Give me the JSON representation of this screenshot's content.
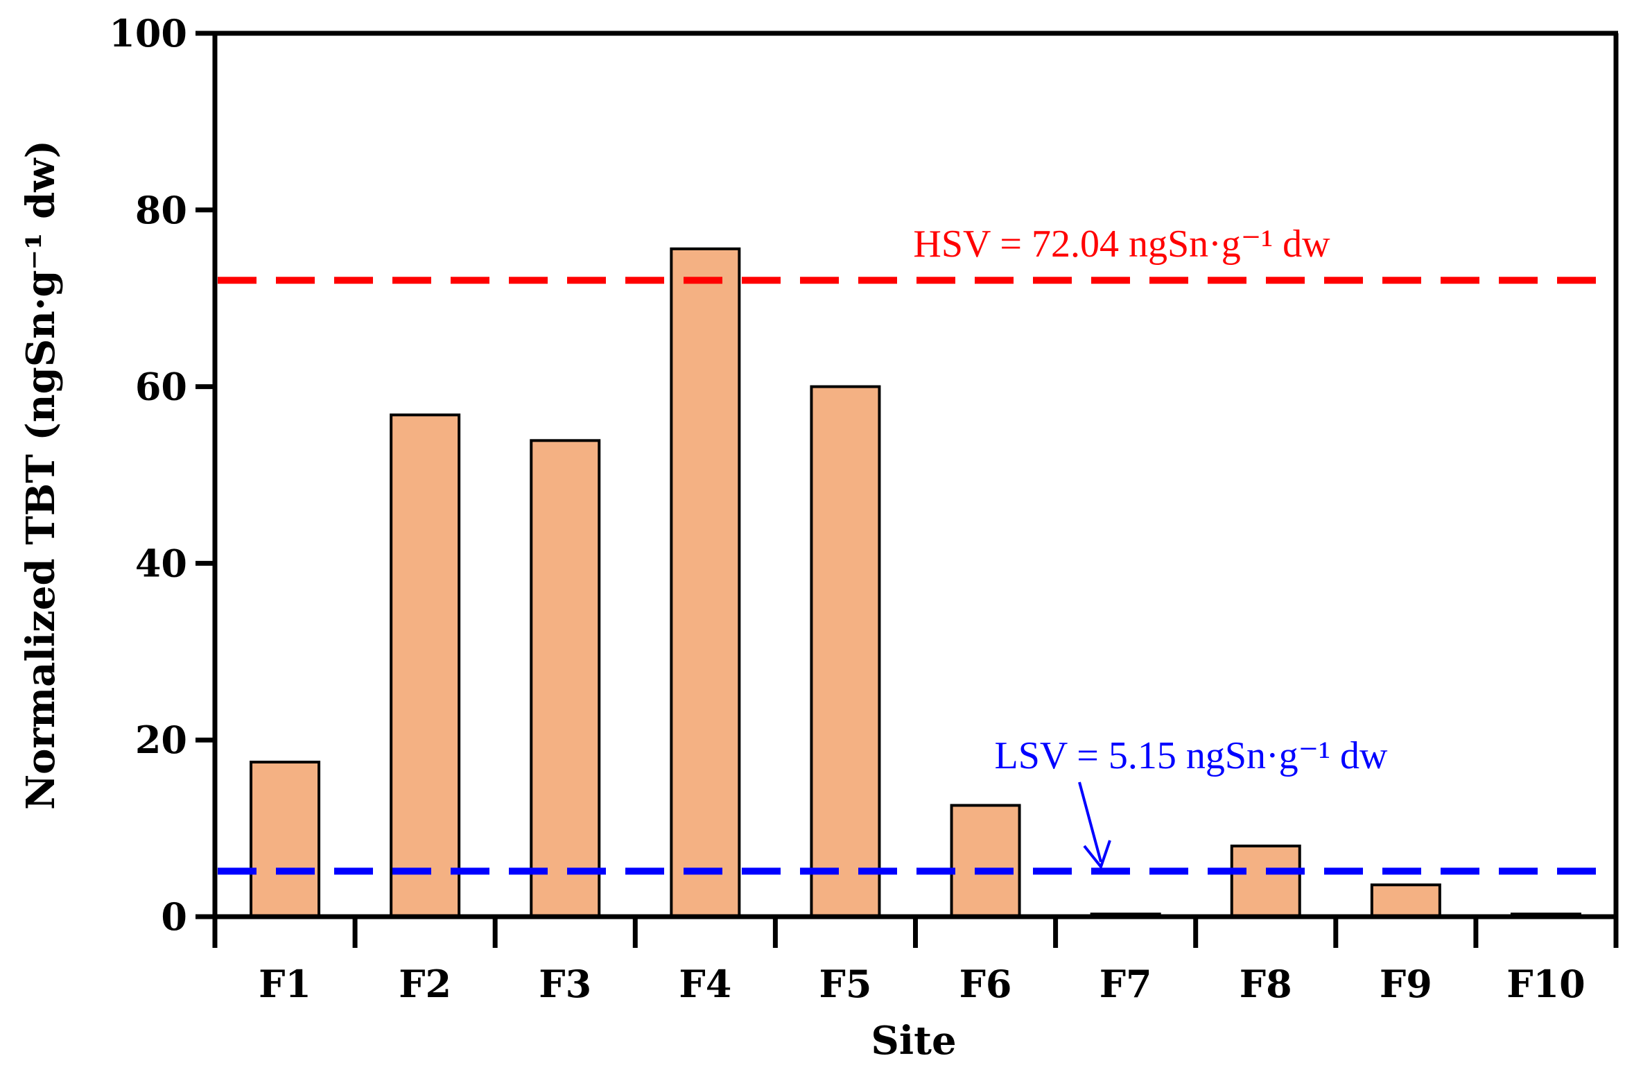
{
  "chart_data": {
    "type": "bar",
    "title": "",
    "xlabel": "Site",
    "ylabel": "Normalized TBT (ngSn·g⁻¹ dw)",
    "categories": [
      "F1",
      "F2",
      "F3",
      "F4",
      "F5",
      "F6",
      "F7",
      "F8",
      "F9",
      "F10"
    ],
    "values": [
      17.5,
      56.8,
      53.9,
      75.6,
      60.0,
      12.6,
      0.3,
      8.0,
      3.6,
      0.3
    ],
    "ylim": [
      0,
      100
    ],
    "yticks": [
      "0",
      "20",
      "40",
      "60",
      "80",
      "100"
    ],
    "grid": false,
    "bar_color": "#f4b183",
    "reference_lines": [
      {
        "name": "HSV",
        "value": 72.04,
        "label": "HSV = 72.04 ngSn·g⁻¹ dw",
        "color": "#ff0000"
      },
      {
        "name": "LSV",
        "value": 5.15,
        "label": "LSV = 5.15 ngSn·g⁻¹ dw",
        "color": "#0000ff"
      }
    ]
  }
}
